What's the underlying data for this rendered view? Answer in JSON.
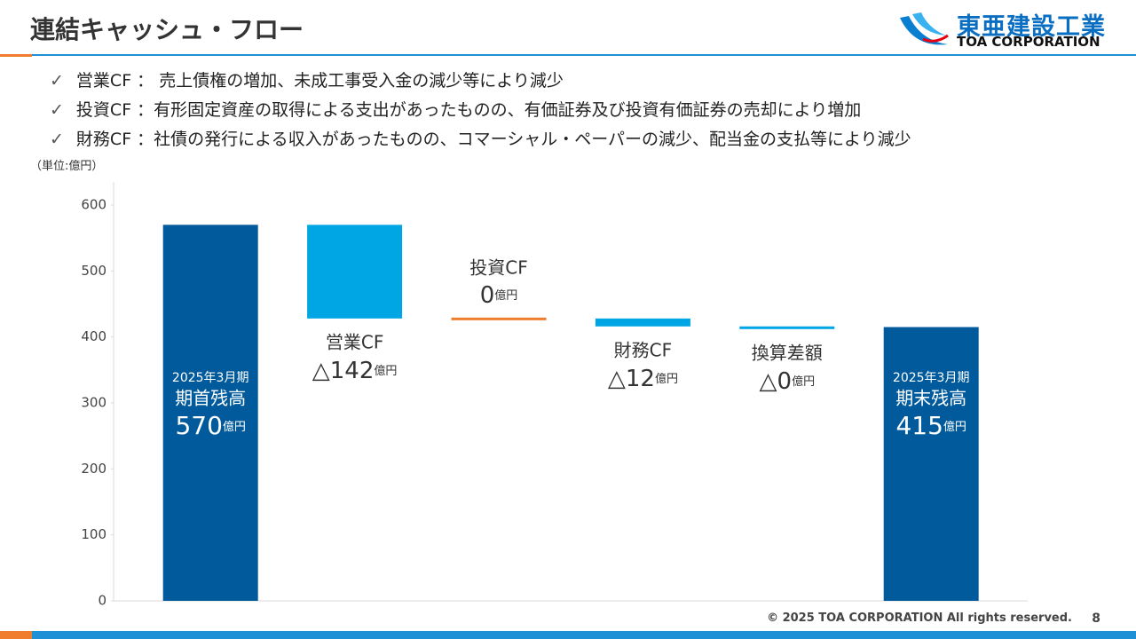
{
  "header": {
    "title": "連結キャッシュ・フロー",
    "logo_name": "東亜建設工業",
    "logo_sub": "TOA CORPORATION"
  },
  "bullets": [
    "営業CF ： 売上債権の増加、未成工事受入金の減少等により減少",
    "投資CF ：有形固定資産の取得による支出があったものの、有価証券及び投資有価証券の売却により増加",
    "財務CF ：社債の発行による収入があったものの、コマーシャル・ペーパーの減少、配当金の支払等により減少"
  ],
  "chart_data": {
    "type": "waterfall",
    "unit_note": "（単位:億円）",
    "value_unit": "億円",
    "categories": [
      "期首残高",
      "営業CF",
      "投資CF",
      "財務CF",
      "換算差額",
      "期末残高"
    ],
    "period_labels": [
      "2025年3月期",
      "2025年3月期"
    ],
    "kinds": [
      "total",
      "delta",
      "delta",
      "delta",
      "delta",
      "total"
    ],
    "values": [
      570,
      -142,
      0,
      -12,
      -0.4,
      415
    ],
    "value_labels": [
      "570",
      "△142",
      "0",
      "△12",
      "△0",
      "415"
    ],
    "colors": [
      "#005a9c",
      "#00a6e4",
      "#f07d2e",
      "#00a6e4",
      "#00a6e4",
      "#005a9c"
    ],
    "ylim": [
      0,
      635
    ],
    "yticks": [
      0,
      100,
      200,
      300,
      400,
      500,
      600
    ]
  },
  "footer": {
    "copyright": "© 2025 TOA CORPORATION  All rights reserved.",
    "page": "8"
  }
}
